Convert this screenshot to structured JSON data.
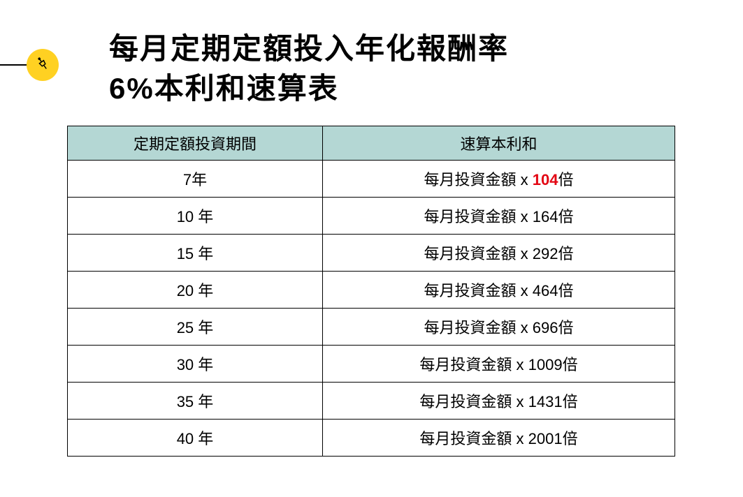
{
  "title_line1": "每月定期定額投入年化報酬率",
  "title_line2": "6%本利和速算表",
  "icon_name": "pin-icon",
  "table": {
    "header_bg": "#b4d7d4",
    "border_color": "#000000",
    "columns": [
      {
        "label": "定期定額投資期間"
      },
      {
        "label": "速算本利和"
      }
    ],
    "value_prefix": "每月投資金額 x ",
    "value_suffix": "倍",
    "rows": [
      {
        "period": "7年",
        "multiplier": "104",
        "highlight": true
      },
      {
        "period": "10 年",
        "multiplier": "164",
        "highlight": false
      },
      {
        "period": "15 年",
        "multiplier": "292",
        "highlight": false
      },
      {
        "period": "20 年",
        "multiplier": "464",
        "highlight": false
      },
      {
        "period": "25 年",
        "multiplier": "696",
        "highlight": false
      },
      {
        "period": "30 年",
        "multiplier": "1009",
        "highlight": false
      },
      {
        "period": "35 年",
        "multiplier": "1431",
        "highlight": false
      },
      {
        "period": "40 年",
        "multiplier": "2001",
        "highlight": false
      }
    ]
  },
  "colors": {
    "badge_bg": "#ffd122",
    "highlight_text": "#e30613",
    "text": "#000000",
    "page_bg": "#ffffff"
  }
}
